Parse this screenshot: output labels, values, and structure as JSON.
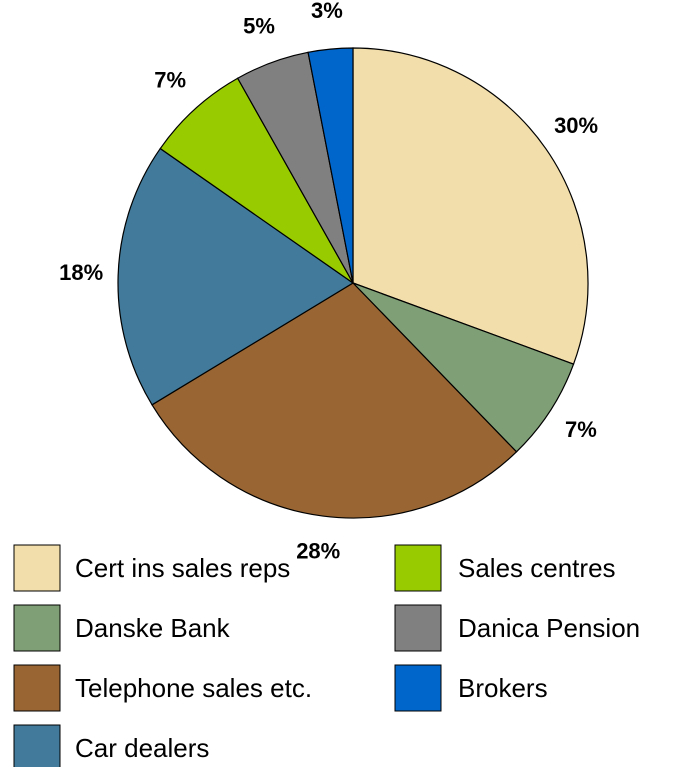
{
  "chart_data": {
    "type": "pie",
    "categories": [
      "Cert ins sales reps",
      "Danske Bank",
      "Telephone sales etc.",
      "Car dealers",
      "Sales centres",
      "Danica Pension",
      "Brokers"
    ],
    "values": [
      30,
      7,
      28,
      18,
      7,
      5,
      3
    ],
    "value_labels": [
      "30%",
      "7%",
      "28%",
      "18%",
      "7%",
      "5%",
      "3%"
    ],
    "colors": [
      "#f2deaa",
      "#7f9f76",
      "#996633",
      "#417a9a",
      "#99cc00",
      "#808080",
      "#0066cc"
    ]
  }
}
